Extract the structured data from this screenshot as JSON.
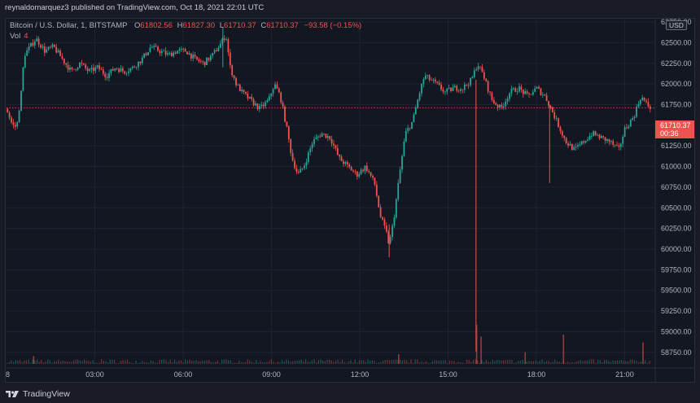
{
  "header": {
    "publish_line": "reynaldomarquez3 published on TradingView.com, Oct 18, 2021 22:01 UTC"
  },
  "legend": {
    "symbol": "Bitcoin / U.S. Dollar, 1, BITSTAMP",
    "o_label": "O",
    "o_value": "61802.56",
    "h_label": "H",
    "h_value": "61827.30",
    "l_label": "L",
    "l_value": "61710.37",
    "c_label": "C",
    "c_value": "61710.37",
    "change": "−93.58 (−0.15%)",
    "vol_label": "Vol",
    "vol_value": "4"
  },
  "price_axis": {
    "currency": "USD",
    "last_price": "61710.37",
    "countdown": "00:36"
  },
  "footer": {
    "brand": "TradingView"
  },
  "colors": {
    "up": "#26a69a",
    "down": "#ef5350",
    "background": "#131722",
    "grid": "#1f2330"
  },
  "chart_data": {
    "type": "candlestick",
    "instrument": "Bitcoin / U.S. Dollar",
    "interval": "1",
    "exchange": "BITSTAMP",
    "ylim": [
      58600,
      62780
    ],
    "y_ticks": [
      "62750.00",
      "62500.00",
      "62250.00",
      "62000.00",
      "61750.00",
      "61500.00",
      "61250.00",
      "61000.00",
      "60750.00",
      "60500.00",
      "60250.00",
      "60000.00",
      "59750.00",
      "59500.00",
      "59250.00",
      "59000.00",
      "58750.00"
    ],
    "x_ticks": [
      "8",
      "03:00",
      "06:00",
      "09:00",
      "12:00",
      "15:00",
      "18:00",
      "21:00"
    ],
    "x_tick_hours": [
      0,
      3,
      6,
      9,
      12,
      15,
      18,
      21
    ],
    "x_range_hours": [
      0,
      21.9
    ],
    "last_close_line": 61710.37,
    "path": [
      [
        0.0,
        61700
      ],
      [
        0.2,
        61500
      ],
      [
        0.35,
        61480
      ],
      [
        0.5,
        61900
      ],
      [
        0.6,
        62350
      ],
      [
        0.8,
        62450
      ],
      [
        1.0,
        62550
      ],
      [
        1.3,
        62400
      ],
      [
        1.6,
        62450
      ],
      [
        1.9,
        62300
      ],
      [
        2.2,
        62150
      ],
      [
        2.5,
        62250
      ],
      [
        2.8,
        62150
      ],
      [
        3.1,
        62200
      ],
      [
        3.4,
        62100
      ],
      [
        3.7,
        62200
      ],
      [
        4.0,
        62150
      ],
      [
        4.3,
        62200
      ],
      [
        4.6,
        62300
      ],
      [
        4.9,
        62450
      ],
      [
        5.2,
        62400
      ],
      [
        5.5,
        62350
      ],
      [
        5.8,
        62400
      ],
      [
        6.1,
        62400
      ],
      [
        6.4,
        62300
      ],
      [
        6.7,
        62250
      ],
      [
        7.0,
        62350
      ],
      [
        7.3,
        62500
      ],
      [
        7.45,
        62600
      ],
      [
        7.6,
        62200
      ],
      [
        7.8,
        62000
      ],
      [
        8.0,
        61900
      ],
      [
        8.3,
        61800
      ],
      [
        8.6,
        61700
      ],
      [
        8.9,
        61800
      ],
      [
        9.1,
        62000
      ],
      [
        9.3,
        61850
      ],
      [
        9.5,
        61500
      ],
      [
        9.7,
        61100
      ],
      [
        9.9,
        60900
      ],
      [
        10.1,
        61000
      ],
      [
        10.4,
        61300
      ],
      [
        10.7,
        61400
      ],
      [
        11.0,
        61350
      ],
      [
        11.3,
        61100
      ],
      [
        11.6,
        61000
      ],
      [
        11.9,
        60900
      ],
      [
        12.2,
        61000
      ],
      [
        12.5,
        60800
      ],
      [
        12.7,
        60400
      ],
      [
        12.9,
        60200
      ],
      [
        13.0,
        60050
      ],
      [
        13.15,
        60350
      ],
      [
        13.35,
        60900
      ],
      [
        13.55,
        61400
      ],
      [
        13.8,
        61550
      ],
      [
        14.0,
        61850
      ],
      [
        14.2,
        62100
      ],
      [
        14.4,
        62050
      ],
      [
        14.6,
        62000
      ],
      [
        14.9,
        61900
      ],
      [
        15.2,
        61950
      ],
      [
        15.5,
        61950
      ],
      [
        15.8,
        62050
      ],
      [
        16.0,
        62250
      ],
      [
        16.2,
        62100
      ],
      [
        16.5,
        61800
      ],
      [
        16.8,
        61700
      ],
      [
        17.1,
        61900
      ],
      [
        17.4,
        61950
      ],
      [
        17.7,
        61850
      ],
      [
        18.0,
        61950
      ],
      [
        18.3,
        61850
      ],
      [
        18.5,
        61700
      ],
      [
        18.75,
        61500
      ],
      [
        19.0,
        61300
      ],
      [
        19.3,
        61200
      ],
      [
        19.6,
        61300
      ],
      [
        19.9,
        61400
      ],
      [
        20.2,
        61350
      ],
      [
        20.5,
        61300
      ],
      [
        20.8,
        61200
      ],
      [
        21.0,
        61450
      ],
      [
        21.3,
        61600
      ],
      [
        21.55,
        61850
      ],
      [
        21.75,
        61750
      ],
      [
        21.9,
        61710
      ]
    ],
    "wicks": [
      {
        "hour": 15.95,
        "low": 58760,
        "high": 62050,
        "direction": "down"
      },
      {
        "hour": 18.45,
        "low": 60800,
        "high": 61750,
        "direction": "down"
      },
      {
        "hour": 13.0,
        "low": 59900,
        "high": 60300,
        "direction": "down"
      },
      {
        "hour": 7.35,
        "low": 62200,
        "high": 62680,
        "direction": "up"
      }
    ],
    "volume": {
      "spikes": [
        {
          "hour": 15.95,
          "rel": 1.0
        },
        {
          "hour": 16.1,
          "rel": 0.7
        },
        {
          "hour": 18.9,
          "rel": 0.75
        },
        {
          "hour": 21.6,
          "rel": 0.55
        },
        {
          "hour": 17.6,
          "rel": 0.3
        },
        {
          "hour": 13.3,
          "rel": 0.25
        },
        {
          "hour": 0.9,
          "rel": 0.2
        }
      ]
    }
  }
}
